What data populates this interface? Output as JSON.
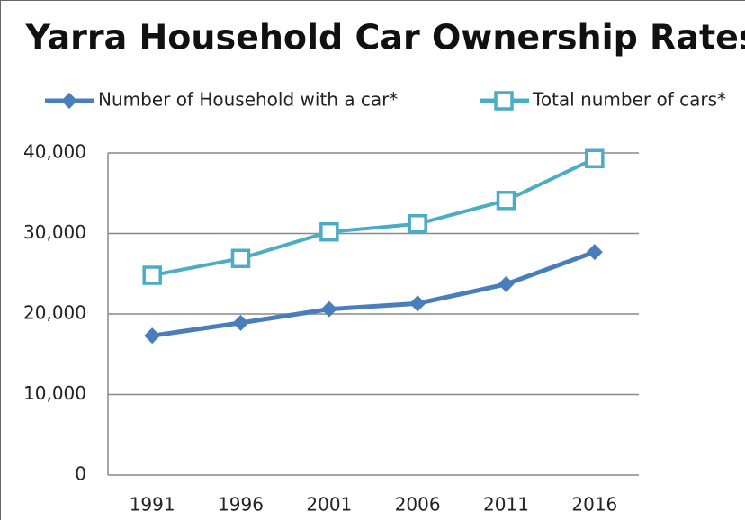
{
  "chart_data": {
    "type": "line",
    "title": "Yarra Household Car Ownership Rates",
    "categories": [
      "1991",
      "1996",
      "2001",
      "2006",
      "2011",
      "2016"
    ],
    "series": [
      {
        "name": "Number of Household with a car*",
        "color": "#4a7ebb",
        "marker": "diamond",
        "values": [
          17300,
          18900,
          20600,
          21300,
          23700,
          27700
        ]
      },
      {
        "name": "Total number of cars*",
        "color": "#4bacc6",
        "marker": "square",
        "values": [
          24800,
          26900,
          30200,
          31200,
          34100,
          39300
        ]
      }
    ],
    "ylim": [
      0,
      40000
    ],
    "yticks": [
      0,
      {
        "value": 10000,
        "label": "10,000"
      },
      {
        "value": 20000,
        "label": "20,000"
      },
      {
        "value": 30000,
        "label": "30,000"
      },
      {
        "value": 40000,
        "label": "40,000"
      }
    ],
    "grid": true
  }
}
